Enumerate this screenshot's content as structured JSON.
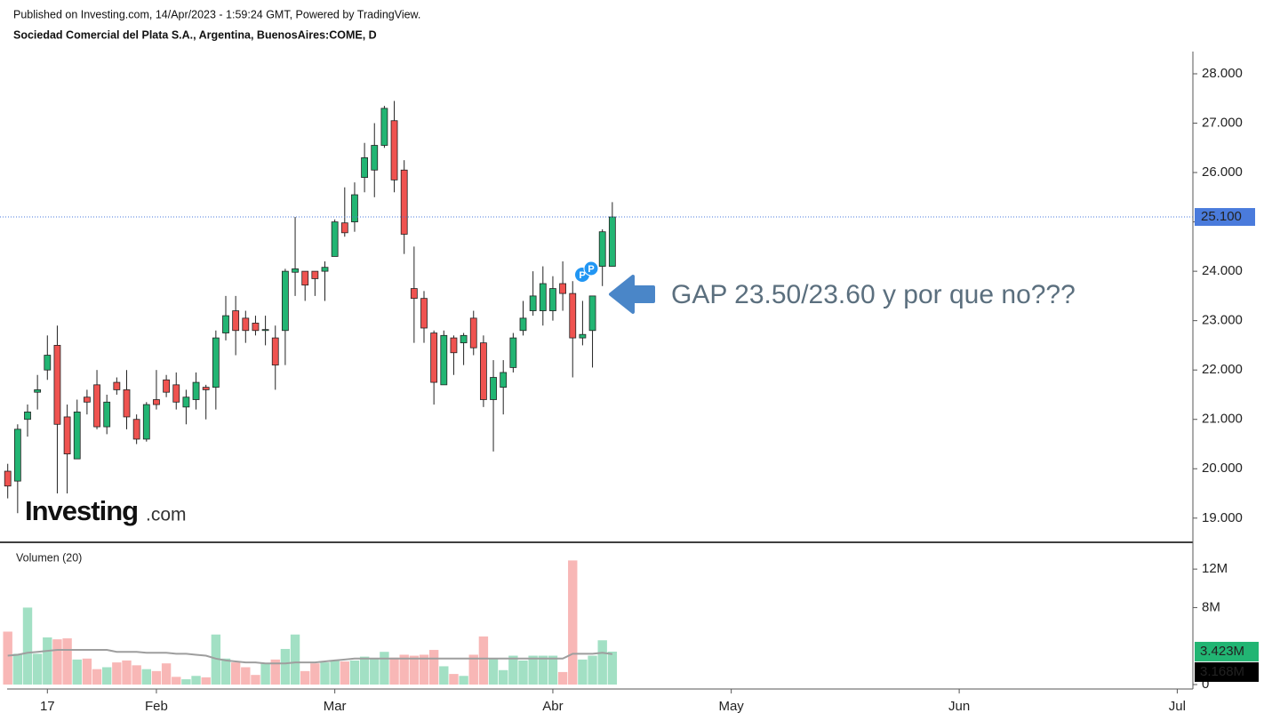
{
  "chart_data": {
    "type": "candlestick",
    "header": "Published on Investing.com, 14/Apr/2023 - 1:59:24 GMT, Powered by TradingView.",
    "subtitle": "Sociedad Comercial del Plata S.A., Argentina, BuenosAires:COME, D",
    "logo": "Investing",
    "logo_suffix": ".com",
    "annotation": "GAP 23.50/23.60  y por que no???",
    "markers": [
      "P",
      "P"
    ],
    "up_color": "#22b573",
    "down_color": "#ef5350",
    "ylim": [
      18.51,
      28.45
    ],
    "yticks": [
      {
        "value": 19,
        "label": "19.000"
      },
      {
        "value": 20,
        "label": "20.000"
      },
      {
        "value": 21,
        "label": "21.000"
      },
      {
        "value": 22,
        "label": "22.000"
      },
      {
        "value": 23,
        "label": "23.000"
      },
      {
        "value": 24,
        "label": "24.000"
      },
      {
        "value": 25,
        "label": "25.000"
      },
      {
        "value": 26,
        "label": "26.000"
      },
      {
        "value": 27,
        "label": "27.000"
      },
      {
        "value": 28,
        "label": "28.000"
      }
    ],
    "grid": false,
    "price_line": {
      "value": 25.1,
      "label": "25.100",
      "color": "#4a7bdc"
    },
    "categories": [
      null,
      null,
      null,
      null,
      "17",
      null,
      null,
      null,
      null,
      null,
      null,
      null,
      null,
      null,
      null,
      "Feb",
      null,
      null,
      null,
      null,
      null,
      null,
      null,
      null,
      null,
      null,
      null,
      null,
      null,
      null,
      null,
      null,
      null,
      "Mar",
      null,
      null,
      null,
      null,
      null,
      null,
      null,
      null,
      null,
      null,
      null,
      null,
      null,
      null,
      null,
      null,
      null,
      null,
      null,
      null,
      null,
      "Abr",
      null,
      null,
      null,
      null,
      null,
      null,
      null,
      null,
      null,
      null,
      null,
      null,
      null,
      null,
      null,
      null,
      null,
      "May",
      null,
      null,
      null,
      null,
      null,
      null,
      null,
      null,
      null,
      null,
      null,
      null,
      null,
      null,
      null,
      null,
      null,
      null,
      null,
      null,
      null,
      null,
      "Jun",
      null,
      null,
      null,
      null,
      null,
      null,
      null,
      null,
      null,
      null,
      null,
      null,
      null,
      null,
      null,
      null,
      null,
      null,
      null,
      null,
      null,
      "Jul"
    ],
    "open": [
      19.95,
      19.75,
      21.0,
      21.55,
      22.0,
      22.5,
      21.05,
      20.2,
      21.45,
      21.7,
      20.85,
      21.75,
      21.6,
      21.0,
      20.6,
      21.4,
      21.8,
      21.7,
      21.25,
      21.4,
      21.65,
      21.65,
      22.75,
      23.2,
      23.05,
      22.95,
      22.8,
      22.65,
      22.8,
      23.98,
      24.0,
      24.0,
      24.0,
      24.3,
      24.98,
      25.0,
      25.9,
      26.05,
      26.55,
      27.05,
      26.05,
      23.65,
      23.45,
      22.75,
      21.7,
      22.65,
      22.55,
      23.05,
      22.55,
      21.4,
      21.65,
      22.05,
      22.8,
      23.2,
      23.2,
      23.2,
      23.75,
      23.55,
      22.65,
      22.8,
      24.1,
      24.1,
      null,
      null,
      null,
      null,
      null,
      null,
      null,
      null,
      null,
      null,
      null,
      null,
      null,
      null,
      null,
      null,
      null,
      null,
      null,
      null,
      null,
      null,
      null,
      null,
      null,
      null,
      null,
      null,
      null,
      null,
      null,
      null,
      null,
      null,
      null,
      null,
      null,
      null,
      null,
      null,
      null,
      null,
      null,
      null,
      null,
      null,
      null,
      null,
      null,
      null,
      null,
      null,
      null,
      null,
      null,
      null,
      null
    ],
    "high": [
      20.1,
      20.9,
      21.3,
      21.9,
      22.7,
      22.9,
      21.3,
      21.4,
      21.6,
      22.0,
      21.5,
      21.85,
      22.0,
      21.1,
      21.35,
      22.0,
      21.9,
      21.95,
      21.6,
      21.95,
      21.7,
      22.8,
      23.5,
      23.5,
      23.2,
      23.1,
      23.1,
      22.9,
      24.05,
      25.1,
      24.0,
      24.0,
      24.2,
      25.05,
      25.7,
      25.8,
      26.6,
      27.0,
      27.35,
      27.45,
      26.25,
      24.5,
      23.6,
      22.8,
      22.8,
      22.7,
      22.75,
      23.2,
      22.7,
      22.2,
      22.2,
      22.75,
      23.4,
      24.0,
      24.1,
      23.9,
      24.2,
      23.8,
      23.4,
      23.5,
      24.85,
      25.4,
      null,
      null,
      null,
      null,
      null,
      null,
      null,
      null,
      null,
      null,
      null,
      null,
      null,
      null,
      null,
      null,
      null,
      null,
      null,
      null,
      null,
      null,
      null,
      null,
      null,
      null,
      null,
      null,
      null,
      null,
      null,
      null,
      null,
      null,
      null,
      null,
      null,
      null,
      null,
      null,
      null,
      null,
      null,
      null,
      null,
      null,
      null,
      null,
      null,
      null,
      null,
      null,
      null,
      null,
      null,
      null,
      null
    ],
    "low": [
      19.4,
      19.1,
      20.65,
      21.2,
      21.8,
      19.5,
      19.5,
      20.2,
      21.1,
      20.8,
      20.7,
      21.5,
      20.8,
      20.5,
      20.55,
      21.2,
      21.45,
      21.2,
      20.9,
      21.2,
      21.0,
      21.2,
      22.6,
      22.3,
      22.55,
      22.7,
      22.5,
      21.6,
      22.1,
      23.5,
      23.4,
      23.5,
      23.4,
      24.3,
      24.7,
      24.8,
      25.6,
      25.5,
      26.5,
      25.6,
      24.35,
      22.55,
      22.55,
      21.3,
      21.7,
      21.9,
      22.1,
      22.3,
      21.25,
      20.35,
      21.1,
      21.95,
      22.7,
      23.1,
      22.9,
      23.0,
      23.2,
      21.85,
      22.5,
      22.05,
      23.7,
      24.1,
      null,
      null,
      null,
      null,
      null,
      null,
      null,
      null,
      null,
      null,
      null,
      null,
      null,
      null,
      null,
      null,
      null,
      null,
      null,
      null,
      null,
      null,
      null,
      null,
      null,
      null,
      null,
      null,
      null,
      null,
      null,
      null,
      null,
      null,
      null,
      null,
      null,
      null,
      null,
      null,
      null,
      null,
      null,
      null,
      null,
      null,
      null,
      null,
      null,
      null,
      null,
      null,
      null,
      null,
      null,
      null,
      null
    ],
    "close": [
      19.65,
      20.8,
      21.15,
      21.6,
      22.3,
      20.9,
      20.3,
      21.15,
      21.35,
      20.85,
      21.35,
      21.6,
      21.05,
      20.6,
      21.3,
      21.3,
      21.55,
      21.35,
      21.45,
      21.75,
      21.6,
      22.65,
      23.1,
      22.8,
      22.8,
      22.8,
      22.82,
      22.1,
      24.0,
      24.05,
      23.72,
      23.85,
      24.08,
      25.0,
      24.78,
      25.55,
      26.3,
      26.55,
      27.3,
      25.85,
      24.75,
      23.45,
      22.85,
      21.75,
      22.7,
      22.35,
      22.7,
      22.45,
      21.4,
      21.85,
      21.95,
      22.65,
      23.05,
      23.5,
      23.75,
      23.65,
      23.55,
      22.65,
      22.72,
      23.5,
      24.8,
      25.1,
      null,
      null,
      null,
      null,
      null,
      null,
      null,
      null,
      null,
      null,
      null,
      null,
      null,
      null,
      null,
      null,
      null,
      null,
      null,
      null,
      null,
      null,
      null,
      null,
      null,
      null,
      null,
      null,
      null,
      null,
      null,
      null,
      null,
      null,
      null,
      null,
      null,
      null,
      null,
      null,
      null,
      null,
      null,
      null,
      null,
      null,
      null,
      null,
      null,
      null,
      null,
      null,
      null,
      null,
      null,
      null,
      null
    ],
    "volume": {
      "title": "Volumen (20)",
      "ylim": [
        0,
        14600000
      ],
      "yticks": [
        0,
        {
          "value": 8000000,
          "label": "8M"
        },
        {
          "value": 12000000,
          "label": "12M"
        }
      ],
      "ma_color": "#9e9e9e",
      "last_label": "3.423M",
      "ma_last_label": "3.168M",
      "values": [
        5500000,
        3200000,
        8000000,
        3200000,
        4900000,
        4700000,
        4800000,
        2600000,
        2700000,
        1600000,
        1800000,
        2300000,
        2500000,
        2000000,
        1600000,
        1400000,
        2200000,
        800000,
        550000,
        900000,
        750000,
        5200000,
        2700000,
        2300000,
        1800000,
        1000000,
        2200000,
        2600000,
        3700000,
        5200000,
        1400000,
        2200000,
        2300000,
        2500000,
        2400000,
        2500000,
        2900000,
        2700000,
        3400000,
        2800000,
        3100000,
        3000000,
        3100000,
        3600000,
        1900000,
        1100000,
        900000,
        3100000,
        5000000,
        2700000,
        1500000,
        3000000,
        2500000,
        3000000,
        3000000,
        3000000,
        1300000,
        12900000,
        2600000,
        3000000,
        4600000,
        3423000,
        null,
        null,
        null,
        null,
        null,
        null,
        null,
        null,
        null,
        null,
        null,
        null,
        null,
        null,
        null,
        null,
        null,
        null,
        null,
        null,
        null,
        null,
        null,
        null,
        null,
        null,
        null,
        null,
        null,
        null,
        null,
        null,
        null,
        null,
        null,
        null,
        null,
        null,
        null,
        null,
        null,
        null,
        null,
        null,
        null,
        null,
        null,
        null,
        null,
        null,
        null,
        null,
        null,
        null,
        null,
        null,
        null
      ],
      "ma": [
        3000000,
        3100000,
        3300000,
        3400000,
        3500000,
        3600000,
        3600000,
        3600000,
        3600000,
        3600000,
        3600000,
        3400000,
        3400000,
        3400000,
        3300000,
        3300000,
        3300000,
        3200000,
        3200000,
        3100000,
        3000000,
        2700000,
        2500000,
        2400000,
        2300000,
        2300000,
        2200000,
        2200000,
        2200000,
        2300000,
        2300000,
        2300000,
        2400000,
        2500000,
        2600000,
        2700000,
        2700000,
        2700000,
        2700000,
        2700000,
        2700000,
        2700000,
        2700000,
        2700000,
        2700000,
        2700000,
        2700000,
        2700000,
        2700000,
        2700000,
        2700000,
        2700000,
        2700000,
        2700000,
        2700000,
        2700000,
        2700000,
        3200000,
        3200000,
        3200000,
        3300000,
        3168000,
        null,
        null,
        null,
        null,
        null,
        null,
        null,
        null,
        null,
        null,
        null,
        null,
        null,
        null,
        null,
        null,
        null,
        null,
        null,
        null,
        null,
        null,
        null,
        null,
        null,
        null,
        null,
        null,
        null,
        null,
        null,
        null,
        null,
        null,
        null,
        null,
        null,
        null,
        null,
        null,
        null,
        null,
        null,
        null,
        null,
        null,
        null,
        null,
        null,
        null,
        null,
        null,
        null,
        null,
        null,
        null,
        null
      ]
    }
  }
}
